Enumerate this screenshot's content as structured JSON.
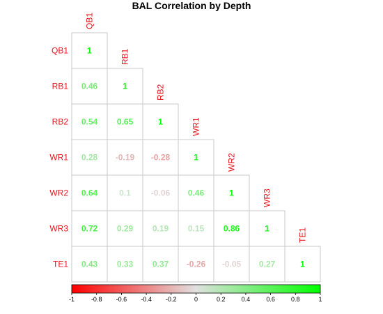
{
  "chart_data": {
    "type": "heatmap",
    "title": "BAL Correlation by Depth",
    "variables": [
      "QB1",
      "RB1",
      "RB2",
      "WR1",
      "WR2",
      "WR3",
      "TE1"
    ],
    "matrix_lower": [
      [
        1
      ],
      [
        0.46,
        1
      ],
      [
        0.54,
        0.65,
        1
      ],
      [
        0.28,
        -0.19,
        -0.28,
        1
      ],
      [
        0.64,
        0.1,
        -0.06,
        0.46,
        1
      ],
      [
        0.72,
        0.29,
        0.19,
        0.15,
        0.86,
        1
      ],
      [
        0.43,
        0.33,
        0.37,
        -0.26,
        -0.05,
        0.27,
        1
      ]
    ],
    "value_labels": [
      [
        "1"
      ],
      [
        "0.46",
        "1"
      ],
      [
        "0.54",
        "0.65",
        "1"
      ],
      [
        "0.28",
        "-0.19",
        "-0.28",
        "1"
      ],
      [
        "0.64",
        "0.1",
        "-0.06",
        "0.46",
        "1"
      ],
      [
        "0.72",
        "0.29",
        "0.19",
        "0.15",
        "0.86",
        "1"
      ],
      [
        "0.43",
        "0.33",
        "0.37",
        "-0.26",
        "-0.05",
        "0.27",
        "1"
      ]
    ],
    "color_scale": {
      "range": [
        -1,
        1
      ],
      "colors": [
        "#ff0000",
        "#e0e0e0",
        "#00ff00"
      ],
      "ticks": [
        -1,
        -0.8,
        -0.6,
        -0.4,
        -0.2,
        0,
        0.2,
        0.4,
        0.6,
        0.8,
        1
      ],
      "tick_labels": [
        "-1",
        "-0.8",
        "-0.6",
        "-0.4",
        "-0.2",
        "0",
        "0.2",
        "0.4",
        "0.6",
        "0.8",
        "1"
      ]
    },
    "label_color": "#e8141c",
    "grid_color": "#c8c8c8"
  }
}
